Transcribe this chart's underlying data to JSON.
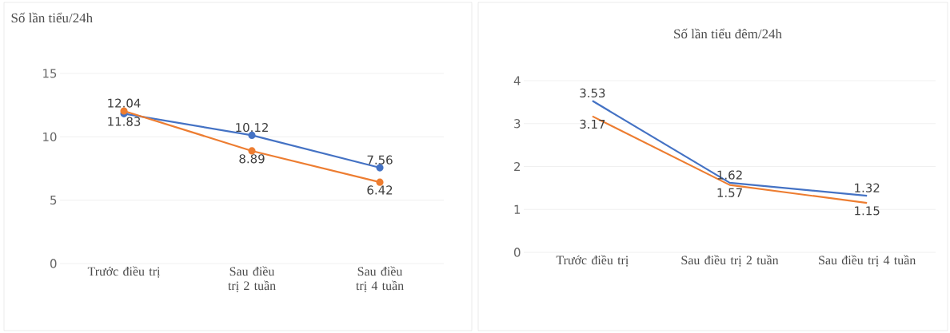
{
  "chart_data": [
    {
      "type": "line",
      "title": "Số lần tiểu/24h",
      "categories": [
        "Trước điều trị",
        "Sau điều trị 2 tuần",
        "Sau điều trị 4 tuần"
      ],
      "series": [
        {
          "color": "#4472c4",
          "values": [
            11.83,
            10.12,
            7.56
          ]
        },
        {
          "color": "#ed7d31",
          "values": [
            12.04,
            8.89,
            6.42
          ]
        }
      ],
      "ylim": [
        0,
        15
      ],
      "yticks": [
        0,
        5,
        10,
        15
      ],
      "grid": "y",
      "marker": "circle",
      "data_labels": true
    },
    {
      "type": "line",
      "title": "Số lần tiểu đêm/24h",
      "categories": [
        "Trước điều trị",
        "Sau điều trị 2 tuần",
        "Sau điều trị 4 tuần"
      ],
      "series": [
        {
          "color": "#4472c4",
          "values": [
            3.53,
            1.62,
            1.32
          ]
        },
        {
          "color": "#ed7d31",
          "values": [
            3.17,
            1.57,
            1.15
          ]
        }
      ],
      "ylim": [
        0,
        4
      ],
      "yticks": [
        0,
        1,
        2,
        3,
        4
      ],
      "grid": "y",
      "marker": "none",
      "data_labels": true
    }
  ]
}
